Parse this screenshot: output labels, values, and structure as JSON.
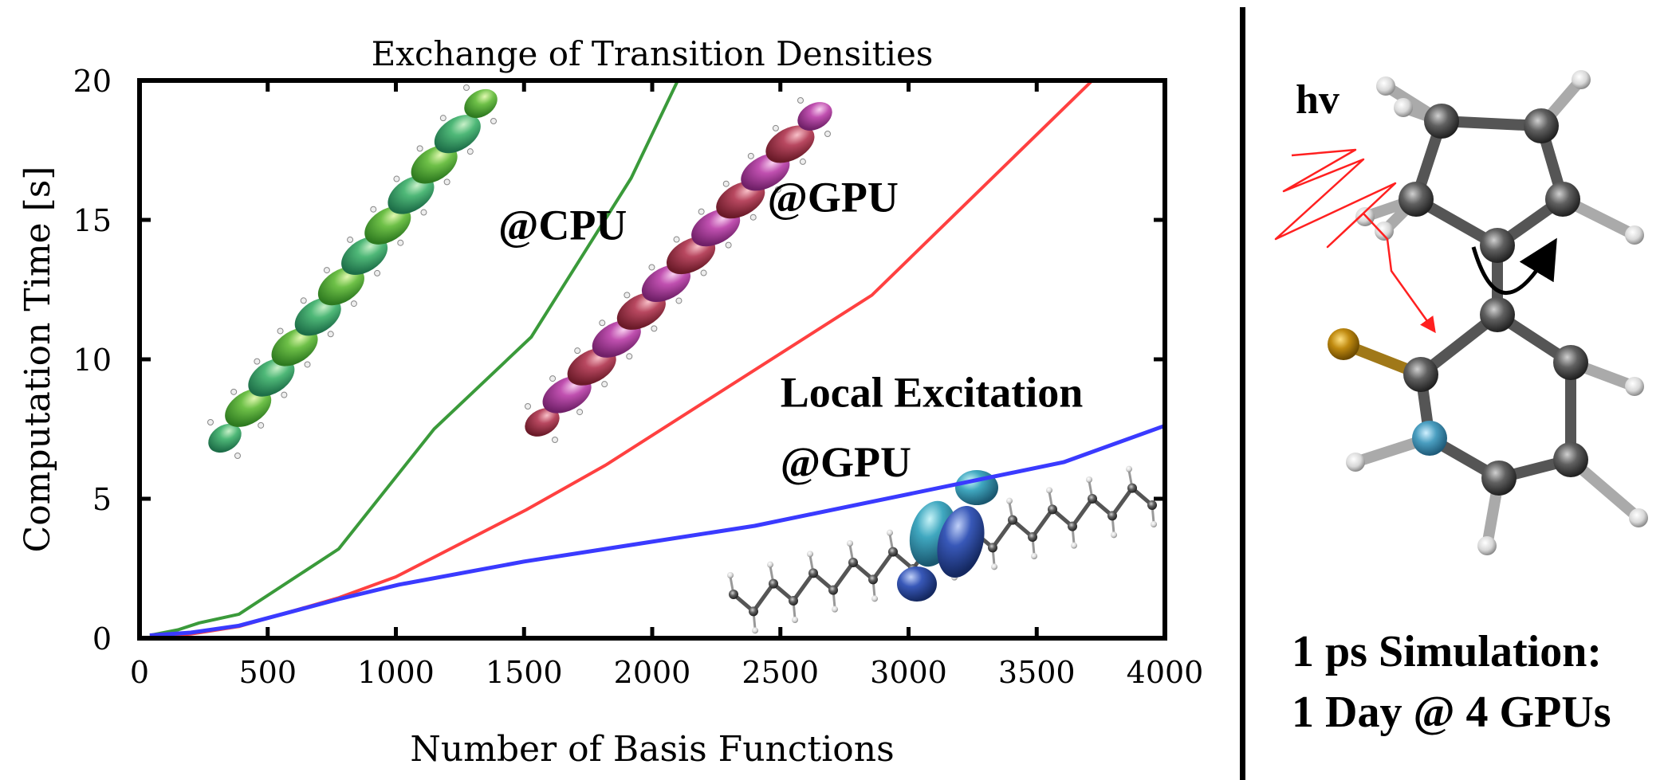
{
  "chart_data": {
    "type": "line",
    "title": "Exchange of Transition Densities",
    "xlabel": "Number of Basis Functions",
    "ylabel": "Computation Time [s]",
    "xlim": [
      0,
      4000
    ],
    "ylim": [
      0,
      20
    ],
    "xticks": [
      0,
      500,
      1000,
      1500,
      2000,
      2500,
      3000,
      3500,
      4000
    ],
    "yticks": [
      0,
      5,
      10,
      15,
      20
    ],
    "grid": false,
    "legend": "none",
    "series": [
      {
        "name": "@CPU",
        "color": "#3a9a3a",
        "x": [
          40,
          150,
          233,
          388,
          777,
          1149,
          1528,
          1918,
          2100
        ],
        "y": [
          0.1,
          0.3,
          0.55,
          0.86,
          3.2,
          7.5,
          10.8,
          16.5,
          20.0
        ]
      },
      {
        "name": "@GPU",
        "color": "#ff4040",
        "x": [
          40,
          200,
          388,
          777,
          1000,
          1508,
          1817,
          2857,
          3717
        ],
        "y": [
          0.05,
          0.15,
          0.42,
          1.45,
          2.2,
          4.6,
          6.2,
          12.3,
          20.0
        ]
      },
      {
        "name": "Local Excitation @GPU",
        "color": "#3a3aff",
        "x": [
          40,
          200,
          388,
          777,
          1012,
          1500,
          2000,
          2400,
          3605,
          4000
        ],
        "y": [
          0.1,
          0.2,
          0.45,
          1.4,
          1.92,
          2.75,
          3.46,
          4.03,
          6.31,
          7.62
        ]
      }
    ],
    "annotations": [
      {
        "text": "@CPU",
        "x": 1400,
        "y": 14.3
      },
      {
        "text": "@GPU",
        "x": 2450,
        "y": 15.3
      },
      {
        "text": "Local Excitation",
        "x": 2500,
        "y": 8.3
      },
      {
        "text": "@GPU",
        "x": 2500,
        "y": 5.8
      }
    ]
  },
  "right_panel": {
    "light_label": "hv",
    "line1": "1 ps Simulation:",
    "line2": "1 Day @ 4 GPUs"
  },
  "colors": {
    "cpu_orbitals": [
      "#3fa86a",
      "#6abf3a"
    ],
    "gpu_orbitals": [
      "#b3405a",
      "#c050b0"
    ],
    "local_orbitals": [
      "#40a8c0",
      "#3858b8"
    ],
    "sulfur": "#c08a10",
    "nitrogen": "#4a9ec0",
    "carbon": "#555555",
    "hydrogen": "#e8e8e8",
    "photon": "#ff2020"
  }
}
